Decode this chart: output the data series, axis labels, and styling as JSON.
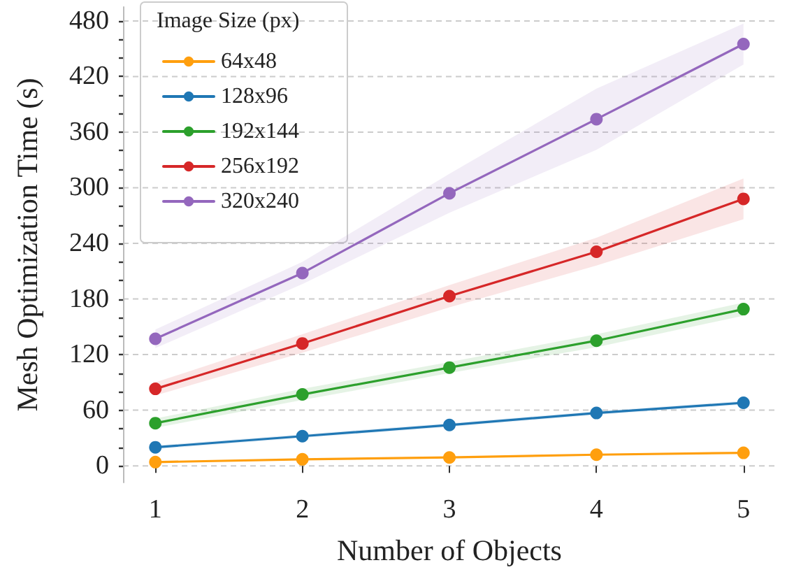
{
  "chart_data": {
    "type": "line",
    "xlabel": "Number of Objects",
    "ylabel": "Mesh Optimization Time (s)",
    "legend_title": "Image Size (px)",
    "legend": "top left",
    "grid": "y",
    "marker": "circle",
    "line_style": "solid",
    "x": [
      1,
      2,
      3,
      4,
      5
    ],
    "xlim": [
      0.78,
      5.22
    ],
    "xticks": [
      1,
      2,
      3,
      4,
      5
    ],
    "ylim": [
      -18,
      495
    ],
    "yticks": [
      0,
      {
        "value": 20,
        "label": null
      },
      {
        "value": 40,
        "label": null
      },
      60,
      {
        "value": 80,
        "label": null
      },
      {
        "value": 100,
        "label": null
      },
      120,
      {
        "value": 140,
        "label": null
      },
      {
        "value": 160,
        "label": null
      },
      180,
      {
        "value": 200,
        "label": null
      },
      {
        "value": 220,
        "label": null
      },
      240,
      {
        "value": 260,
        "label": null
      },
      {
        "value": 280,
        "label": null
      },
      300,
      {
        "value": 320,
        "label": null
      },
      {
        "value": 340,
        "label": null
      },
      360,
      {
        "value": 380,
        "label": null
      },
      {
        "value": 400,
        "label": null
      },
      420,
      {
        "value": 440,
        "label": null
      },
      {
        "value": 460,
        "label": null
      },
      480
    ],
    "series": [
      {
        "name": "64x48",
        "color": "#ff9f0e",
        "values": [
          4,
          7,
          9,
          12,
          14
        ]
      },
      {
        "name": "128x96",
        "color": "#1f77b4",
        "values": [
          20,
          32,
          44,
          57,
          68
        ],
        "lower": [
          18,
          30,
          42,
          55,
          66
        ],
        "upper": [
          22,
          34,
          46,
          59,
          70
        ]
      },
      {
        "name": "192x144",
        "color": "#2ca02c",
        "values": [
          46,
          77,
          106,
          135,
          169
        ],
        "lower": [
          41,
          71,
          100,
          128,
          162
        ],
        "upper": [
          51,
          83,
          112,
          142,
          176
        ]
      },
      {
        "name": "256x192",
        "color": "#d62728",
        "values": [
          83,
          132,
          183,
          231,
          288
        ],
        "lower": [
          76,
          122,
          171,
          216,
          266
        ],
        "upper": [
          90,
          142,
          195,
          246,
          310
        ]
      },
      {
        "name": "320x240",
        "color": "#9467bd",
        "values": [
          137,
          208,
          294,
          374,
          455
        ],
        "lower": [
          127,
          196,
          273,
          341,
          433
        ],
        "upper": [
          147,
          220,
          315,
          407,
          477
        ]
      }
    ]
  }
}
